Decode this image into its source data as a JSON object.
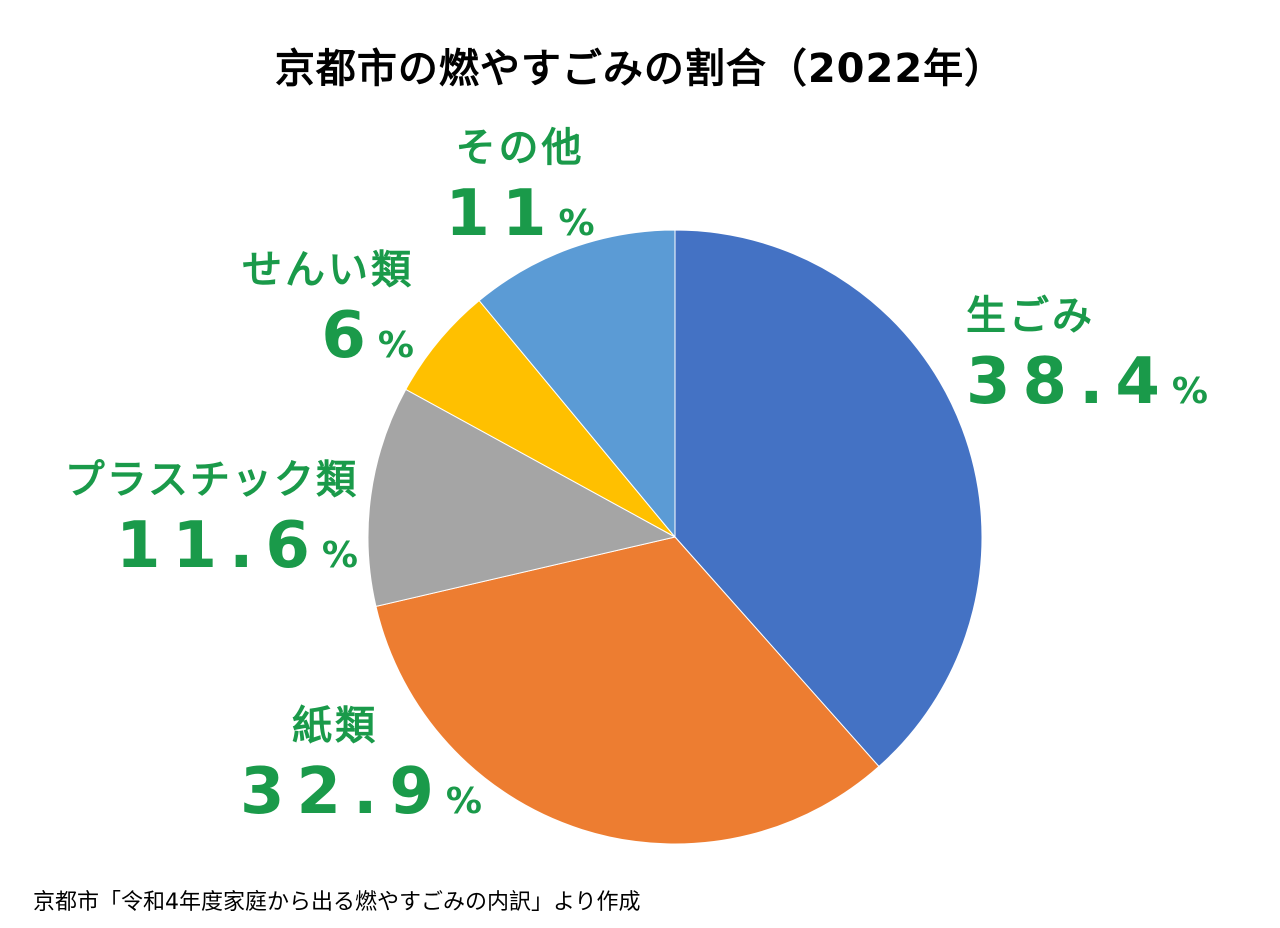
{
  "chart_data": {
    "type": "pie",
    "title": "京都市の燃やすごみの割合（2022年）",
    "start_angle_deg": 0,
    "direction": "clockwise",
    "slices": [
      {
        "label": "生ごみ",
        "value": 38.4,
        "value_text": "38.4",
        "color": "#4472C4"
      },
      {
        "label": "紙類",
        "value": 32.9,
        "value_text": "32.9",
        "color": "#ED7D31"
      },
      {
        "label": "プラスチック類",
        "value": 11.6,
        "value_text": "11.6",
        "color": "#A5A5A5"
      },
      {
        "label": "せんい類",
        "value": 6,
        "value_text": "6",
        "color": "#FFC000"
      },
      {
        "label": "その他",
        "value": 11,
        "value_text": "11",
        "color": "#5B9BD5"
      }
    ],
    "percent_sign": "%",
    "label_color": "#1a9a4a",
    "source": "京都市「令和4年度家庭から出る燃やすごみの内訳」より作成"
  }
}
